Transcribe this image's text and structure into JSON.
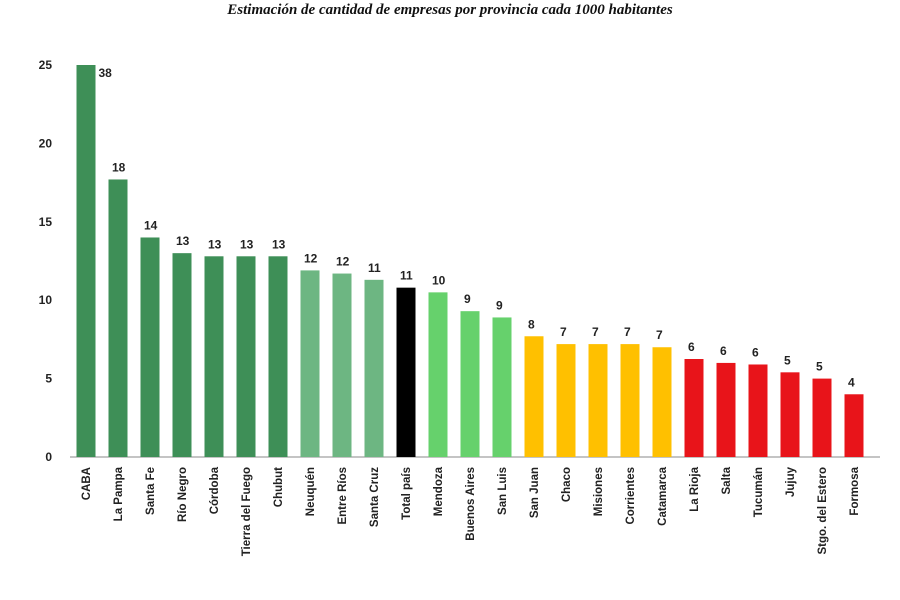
{
  "chart_data": {
    "type": "bar",
    "title": "Estimación de cantidad de empresas por provincia cada 1000 habitantes",
    "xlabel": "",
    "ylabel": "",
    "ylim": [
      0,
      25
    ],
    "yticks": [
      0,
      5,
      10,
      15,
      20,
      25
    ],
    "grid": false,
    "categories": [
      "CABA",
      "La Pampa",
      "Santa Fe",
      "Río Negro",
      "Córdoba",
      "Tierra del Fuego",
      "Chubut",
      "Neuquén",
      "Entre Ríos",
      "Santa Cruz",
      "Total país",
      "Mendoza",
      "Buenos Aires",
      "San Luis",
      "San Juan",
      "Chaco",
      "Misiones",
      "Corrientes",
      "Catamarca",
      "La Rioja",
      "Salta",
      "Tucumán",
      "Jujuy",
      "Stgo. del Estero",
      "Formosa"
    ],
    "values": [
      38,
      17.7,
      14.0,
      13.0,
      12.8,
      12.8,
      12.8,
      11.9,
      11.7,
      11.3,
      10.8,
      10.5,
      9.3,
      8.9,
      7.7,
      7.2,
      7.2,
      7.2,
      7.0,
      6.25,
      6.0,
      5.9,
      5.4,
      5.0,
      4.0
    ],
    "data_labels": [
      "38",
      "18",
      "14",
      "13",
      "13",
      "13",
      "13",
      "12",
      "12",
      "11",
      "11",
      "10",
      "9",
      "9",
      "8",
      "7",
      "7",
      "7",
      "7",
      "6",
      "6",
      "6",
      "5",
      "5",
      "4"
    ],
    "colors": [
      "#3e8f57",
      "#3e8f57",
      "#3e8f57",
      "#3e8f57",
      "#3e8f57",
      "#3e8f57",
      "#3e8f57",
      "#6db682",
      "#6db682",
      "#6db682",
      "#000000",
      "#66d16c",
      "#66d16c",
      "#66d16c",
      "#ffc000",
      "#ffc000",
      "#ffc000",
      "#ffc000",
      "#ffc000",
      "#e8141a",
      "#e8141a",
      "#e8141a",
      "#e8141a",
      "#e8141a",
      "#e8141a"
    ]
  }
}
